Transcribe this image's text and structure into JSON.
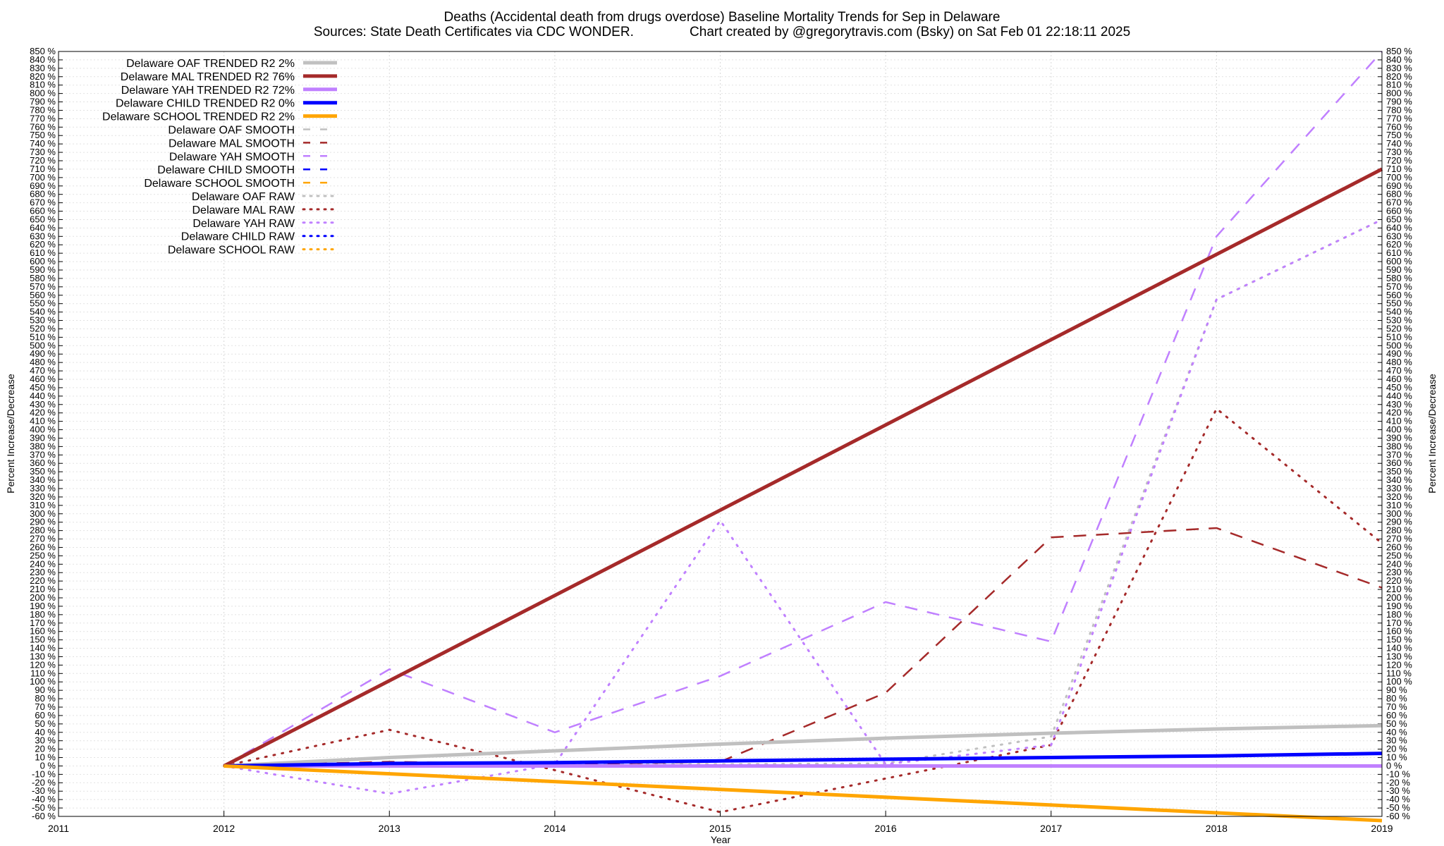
{
  "chart_data": {
    "type": "line",
    "title": "Deaths (Accidental death from drugs overdose)  Baseline Mortality Trends for Sep in Delaware",
    "subtitle": "Sources: State Death Certificates via CDC WONDER.               Chart created by @gregorytravis.com (Bsky) on Sat Feb 01 22:18:11 2025",
    "xlabel": "Year",
    "ylabel_left": "Percent Increase/Decrease",
    "ylabel_right": "Percent Increase/Decrease",
    "xlim": [
      2011,
      2019
    ],
    "ylim": [
      -60,
      850
    ],
    "x_ticks": [
      "2011",
      "2012",
      "2013",
      "2014",
      "2015",
      "2016",
      "2017",
      "2018",
      "2019"
    ],
    "y_tick_step": 10,
    "y_tick_suffix": " %",
    "grid": true,
    "legend_position": "top-left",
    "series": [
      {
        "name": "Delaware OAF TRENDED R2  2%",
        "style": "solid",
        "color": "#c0c0c0",
        "x": [
          2012,
          2013,
          2014,
          2015,
          2016,
          2017,
          2018,
          2019
        ],
        "values": [
          0,
          10,
          18,
          26,
          33,
          39,
          44,
          48
        ]
      },
      {
        "name": "Delaware MAL TRENDED R2  76%",
        "style": "solid",
        "color": "#a52a2a",
        "x": [
          2012,
          2019
        ],
        "values": [
          0,
          710
        ]
      },
      {
        "name": "Delaware YAH TRENDED R2  72%",
        "style": "solid",
        "color": "#c080ff",
        "x": [
          2012,
          2019
        ],
        "values": [
          0,
          0
        ]
      },
      {
        "name": "Delaware CHILD TRENDED R2  0%",
        "style": "solid",
        "color": "#0000ff",
        "x": [
          2012,
          2013,
          2014,
          2015,
          2016,
          2017,
          2018,
          2019
        ],
        "values": [
          0,
          3,
          4,
          6,
          8,
          10,
          12,
          15
        ]
      },
      {
        "name": "Delaware SCHOOL TRENDED R2  2%",
        "style": "solid",
        "color": "#ffa500",
        "x": [
          2012,
          2019
        ],
        "values": [
          0,
          -65
        ]
      },
      {
        "name": "Delaware OAF SMOOTH",
        "style": "dash",
        "color": "#c0c0c0",
        "x": [
          2012,
          2019
        ],
        "values": [
          0,
          0
        ]
      },
      {
        "name": "Delaware MAL SMOOTH",
        "style": "dash",
        "color": "#a52a2a",
        "x": [
          2012,
          2013,
          2014,
          2015,
          2016,
          2017,
          2018,
          2019
        ],
        "values": [
          0,
          5,
          2,
          5,
          87,
          272,
          283,
          212
        ]
      },
      {
        "name": "Delaware YAH SMOOTH",
        "style": "dash",
        "color": "#c080ff",
        "x": [
          2012,
          2013,
          2014,
          2015,
          2016,
          2017,
          2018,
          2019
        ],
        "values": [
          0,
          115,
          40,
          107,
          195,
          148,
          630,
          850
        ]
      },
      {
        "name": "Delaware CHILD SMOOTH",
        "style": "dash",
        "color": "#0000ff",
        "x": [
          2012,
          2019
        ],
        "values": [
          0,
          0
        ]
      },
      {
        "name": "Delaware SCHOOL SMOOTH",
        "style": "dash",
        "color": "#ffa500",
        "x": [
          2012,
          2019
        ],
        "values": [
          0,
          0
        ]
      },
      {
        "name": "Delaware OAF RAW",
        "style": "dot",
        "color": "#c0c0c0",
        "x": [
          2012,
          2013,
          2014,
          2015,
          2016,
          2017,
          2018,
          2019
        ],
        "values": [
          0,
          2,
          2,
          2,
          3,
          35,
          555,
          650
        ]
      },
      {
        "name": "Delaware MAL RAW",
        "style": "dot",
        "color": "#a52a2a",
        "x": [
          2012,
          2013,
          2014,
          2015,
          2016,
          2017,
          2018,
          2019
        ],
        "values": [
          0,
          43,
          -5,
          -55,
          -15,
          25,
          425,
          265
        ]
      },
      {
        "name": "Delaware YAH RAW",
        "style": "dot",
        "color": "#c080ff",
        "x": [
          2012,
          2013,
          2014,
          2015,
          2016,
          2017,
          2018,
          2019
        ],
        "values": [
          0,
          -33,
          2,
          292,
          2,
          25,
          555,
          650
        ]
      },
      {
        "name": "Delaware CHILD RAW",
        "style": "dot",
        "color": "#0000ff",
        "x": [
          2012,
          2019
        ],
        "values": [
          0,
          0
        ]
      },
      {
        "name": "Delaware SCHOOL RAW",
        "style": "dot",
        "color": "#ffa500",
        "x": [
          2012,
          2019
        ],
        "values": [
          0,
          0
        ]
      }
    ]
  }
}
